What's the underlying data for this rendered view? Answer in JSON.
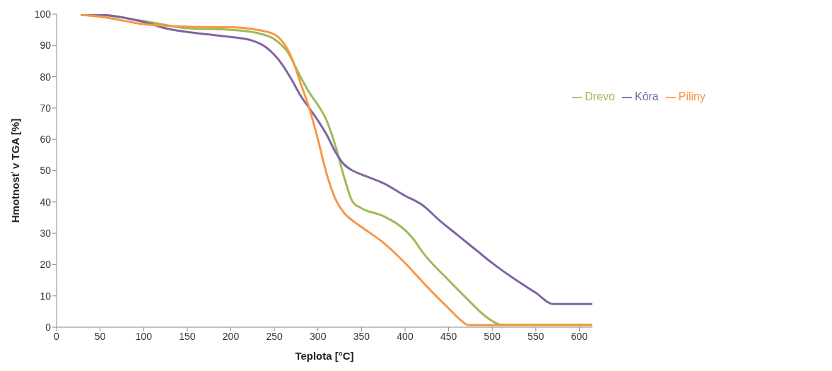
{
  "chart_data": {
    "type": "line",
    "xlabel": "Teplota [°C]",
    "ylabel": "Hmotnosť v TGA [%]",
    "xlim": [
      0,
      615
    ],
    "xticks": [
      0,
      50,
      100,
      150,
      200,
      250,
      300,
      350,
      400,
      450,
      500,
      550,
      600
    ],
    "ylim": [
      0,
      100
    ],
    "yticks": [
      0,
      10,
      20,
      30,
      40,
      50,
      60,
      70,
      80,
      90,
      100
    ],
    "grid": false,
    "legend": "right",
    "marker": "none",
    "line_style": "solid",
    "series": [
      {
        "name": "Drevo",
        "color": "#9bbb59",
        "x": [
          28,
          50,
          100,
          150,
          200,
          230,
          250,
          265,
          280,
          290,
          300,
          310,
          320,
          330,
          340,
          350,
          375,
          400,
          410,
          420,
          450,
          475,
          490,
          500,
          510,
          615
        ],
        "values": [
          99.8,
          99.7,
          97.8,
          95.5,
          95,
          94,
          92,
          88,
          80,
          75,
          71,
          66,
          58,
          48,
          40,
          38,
          35.5,
          31,
          28,
          24,
          15,
          8,
          4,
          2,
          0.8,
          0.8
        ]
      },
      {
        "name": "Kôra",
        "color": "#8064a2",
        "x": [
          28,
          50,
          75,
          100,
          125,
          150,
          175,
          200,
          225,
          240,
          250,
          260,
          270,
          280,
          290,
          300,
          310,
          320,
          330,
          340,
          350,
          375,
          400,
          420,
          440,
          460,
          480,
          500,
          525,
          550,
          570,
          615
        ],
        "values": [
          99.8,
          99.8,
          99,
          97.5,
          95.5,
          94.3,
          93.5,
          92.7,
          91.5,
          89.5,
          87,
          83.5,
          79,
          74,
          70,
          66,
          61.5,
          56,
          52,
          50,
          48.8,
          46,
          42,
          39,
          34,
          29.5,
          25,
          20.5,
          15.5,
          11,
          7.4,
          7.4
        ]
      },
      {
        "name": "Piliny",
        "color": "#f79646",
        "x": [
          28,
          50,
          75,
          100,
          125,
          150,
          200,
          230,
          250,
          260,
          270,
          280,
          290,
          300,
          310,
          320,
          330,
          340,
          350,
          375,
          400,
          425,
          450,
          465,
          472,
          615
        ],
        "values": [
          99.8,
          99.2,
          98,
          96.8,
          96.3,
          96,
          95.8,
          95,
          93.5,
          91,
          86,
          78,
          70,
          60,
          49,
          41,
          36.5,
          34,
          32,
          27,
          20.5,
          13,
          6,
          2,
          0.7,
          0.7
        ]
      }
    ]
  }
}
